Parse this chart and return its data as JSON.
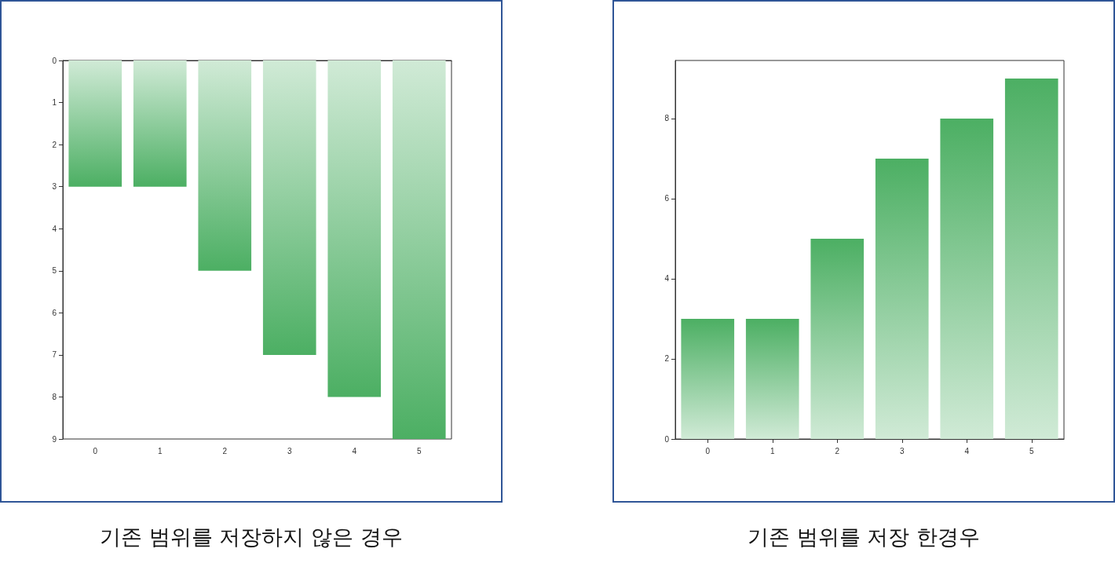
{
  "chart_data": [
    {
      "type": "bar",
      "title": "기존 범위를 저장하지 않은 경우",
      "categories": [
        "0",
        "1",
        "2",
        "3",
        "4",
        "5"
      ],
      "series": [
        {
          "color": "#4caf63",
          "values": [
            3,
            3,
            5,
            7,
            8,
            9
          ]
        }
      ],
      "ylim": [
        9,
        0
      ],
      "yticks": [
        0,
        1,
        2,
        3,
        4,
        5,
        6,
        7,
        8,
        9
      ],
      "grid": false
    },
    {
      "type": "bar",
      "title": "기존 범위를 저장 한경우",
      "categories": [
        "0",
        "1",
        "2",
        "3",
        "4",
        "5"
      ],
      "series": [
        {
          "color": "#4caf63",
          "values": [
            3,
            3,
            5,
            7,
            8,
            9
          ]
        }
      ],
      "ylim": [
        0,
        9.45
      ],
      "yticks": [
        0,
        2,
        4,
        6,
        8
      ],
      "grid": false
    }
  ]
}
